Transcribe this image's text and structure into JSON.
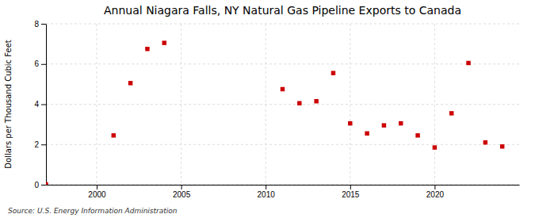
{
  "chart_data": {
    "type": "scatter",
    "title": "Annual Niagara Falls, NY Natural Gas Pipeline Exports to Canada",
    "y_label": "Dollars per Thousand Cubic Feet",
    "annotation": "Source: U.S. Energy Information Administration",
    "x": [
      1997,
      2001,
      2002,
      2003,
      2004,
      2011,
      2012,
      2013,
      2014,
      2015,
      2016,
      2017,
      2018,
      2019,
      2020,
      2021,
      2022,
      2023,
      2024
    ],
    "values": [
      0.02,
      2.45,
      5.05,
      6.75,
      7.05,
      4.75,
      4.05,
      4.15,
      5.55,
      3.05,
      2.55,
      2.95,
      3.05,
      2.45,
      1.85,
      3.55,
      6.05,
      2.1,
      1.9
    ],
    "color": "#cc0000",
    "marker": "square",
    "xlim": [
      1997,
      2025
    ],
    "ylim": [
      0,
      8
    ],
    "xticks": [
      2000,
      2005,
      2010,
      2015,
      2020
    ],
    "yticks": [
      0,
      2,
      4,
      6,
      8
    ],
    "grid": true
  }
}
